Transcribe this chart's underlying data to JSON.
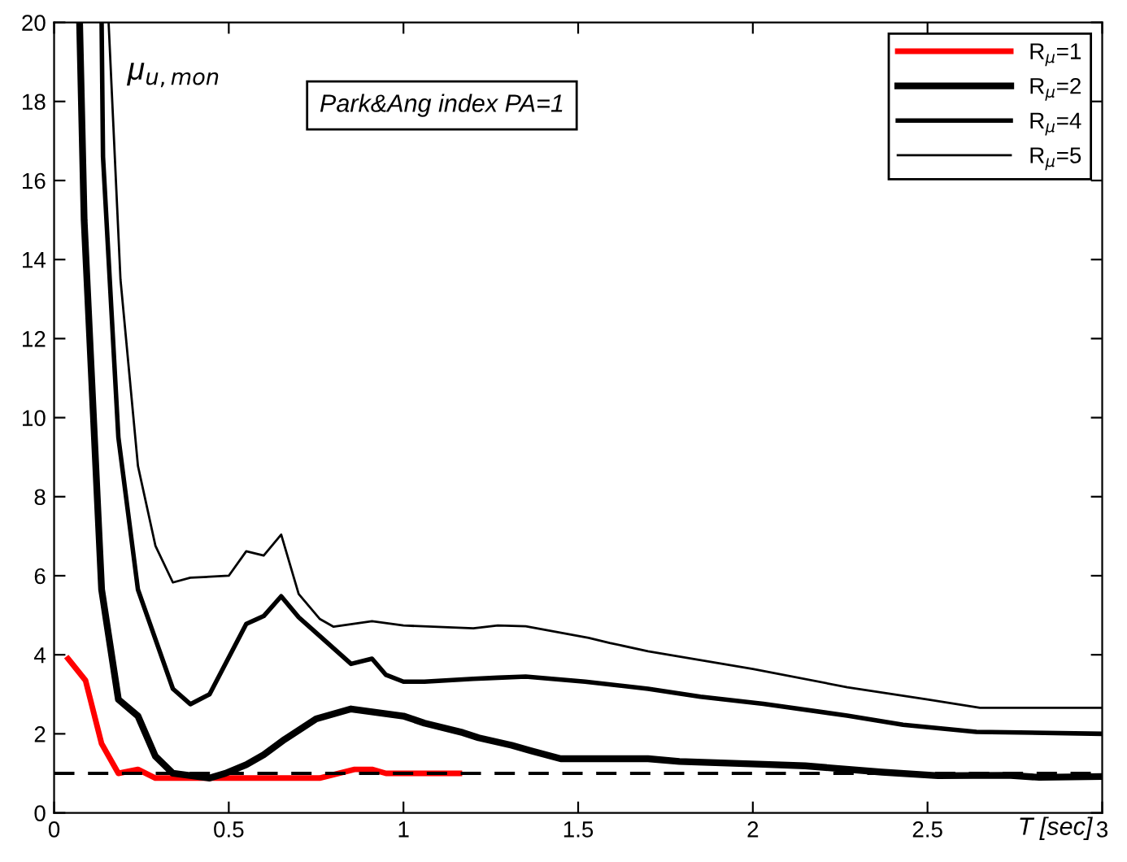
{
  "chart_data": {
    "type": "line",
    "xlabel": "T [sec]",
    "annotations": [
      "μ$_{u,mon}$",
      "Park&Ang index PA=1"
    ],
    "xlim": [
      0,
      3
    ],
    "ylim": [
      0,
      20
    ],
    "xticks": [
      0,
      0.5,
      1,
      1.5,
      2,
      2.5,
      3
    ],
    "yticks": [
      0,
      2,
      4,
      6,
      8,
      10,
      12,
      14,
      16,
      18,
      20
    ],
    "grid": false,
    "legend": "top right",
    "marker": "none",
    "line_style": "solid",
    "ref_lines": [
      {
        "axis": "y",
        "value": 1,
        "color": "#000000",
        "line_style": "dashed"
      }
    ],
    "series": [
      {
        "name": "R$_{μ}$=1",
        "color": "#ff0000",
        "x": [
          0.04,
          0.09,
          0.136,
          0.184,
          0.24,
          0.29,
          0.5,
          0.76,
          0.86,
          0.91,
          0.95,
          1.16
        ],
        "values": [
          3.9,
          3.35,
          1.75,
          1.0,
          1.1,
          0.88,
          0.88,
          0.88,
          1.1,
          1.1,
          1.0,
          1.0
        ]
      },
      {
        "name": "R$_{μ}$=2",
        "color": "#000000",
        "x": [
          0.073,
          0.086,
          0.136,
          0.184,
          0.24,
          0.29,
          0.34,
          0.445,
          0.49,
          0.55,
          0.6,
          0.66,
          0.75,
          0.85,
          1.0,
          1.06,
          1.17,
          1.215,
          1.31,
          1.365,
          1.45,
          1.7,
          1.79,
          2.03,
          2.15,
          2.37,
          2.53,
          2.73,
          2.82,
          3.0
        ],
        "values": [
          20,
          15.0,
          5.65,
          2.87,
          2.45,
          1.43,
          1.0,
          0.88,
          1.0,
          1.22,
          1.47,
          1.86,
          2.38,
          2.63,
          2.45,
          2.27,
          2.03,
          1.9,
          1.71,
          1.57,
          1.37,
          1.37,
          1.3,
          1.23,
          1.19,
          1.03,
          0.94,
          0.95,
          0.9,
          0.92
        ]
      },
      {
        "name": "R$_{μ}$=4",
        "color": "#000000",
        "x": [
          0.136,
          0.14,
          0.184,
          0.24,
          0.34,
          0.39,
          0.445,
          0.55,
          0.6,
          0.65,
          0.7,
          0.85,
          0.91,
          0.95,
          1.0,
          1.06,
          1.2,
          1.27,
          1.35,
          1.52,
          1.7,
          1.85,
          2.03,
          2.27,
          2.43,
          2.64,
          3.0
        ],
        "values": [
          20,
          16.6,
          9.5,
          5.65,
          3.14,
          2.75,
          3.0,
          4.78,
          4.98,
          5.48,
          4.95,
          3.77,
          3.9,
          3.49,
          3.32,
          3.32,
          3.39,
          3.42,
          3.45,
          3.32,
          3.14,
          2.94,
          2.76,
          2.46,
          2.23,
          2.05,
          2.0
        ]
      },
      {
        "name": "R$_{μ}$=5",
        "color": "#000000",
        "x": [
          0.156,
          0.19,
          0.24,
          0.29,
          0.34,
          0.39,
          0.5,
          0.55,
          0.6,
          0.65,
          0.7,
          0.76,
          0.8,
          0.91,
          1.0,
          1.2,
          1.27,
          1.35,
          1.53,
          1.59,
          1.7,
          2.0,
          2.27,
          2.5,
          2.65,
          3.0
        ],
        "values": [
          20,
          13.5,
          8.78,
          6.76,
          5.83,
          5.95,
          6.0,
          6.62,
          6.51,
          7.04,
          5.54,
          4.91,
          4.71,
          4.85,
          4.74,
          4.67,
          4.74,
          4.72,
          4.43,
          4.3,
          4.09,
          3.64,
          3.18,
          2.87,
          2.66,
          2.66
        ]
      }
    ]
  }
}
